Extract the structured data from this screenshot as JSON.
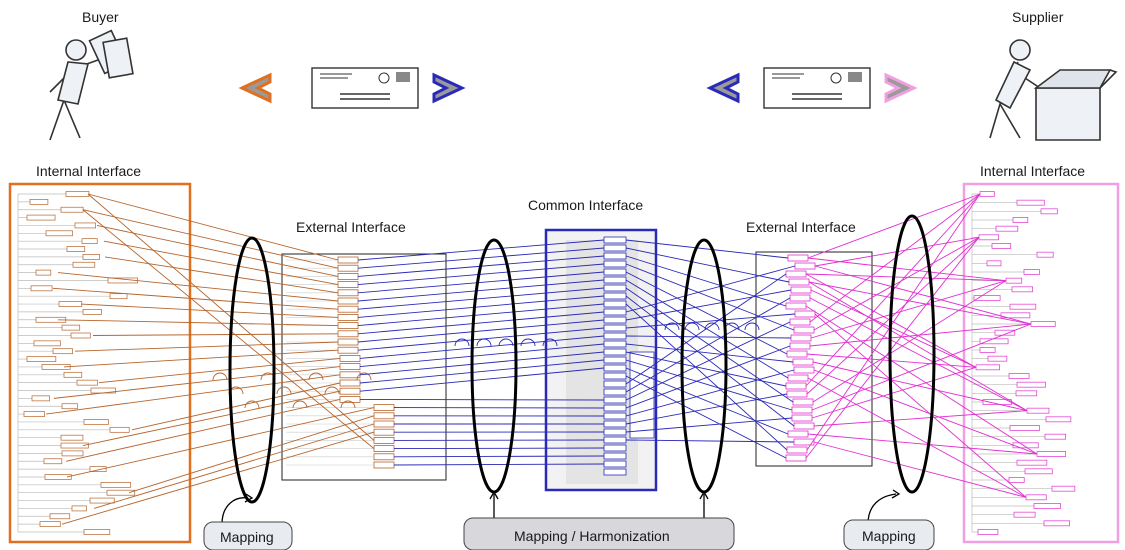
{
  "actors": {
    "buyer": "Buyer",
    "supplier": "Supplier"
  },
  "interfaces": {
    "internal_left": "Internal Interface",
    "external_left": "External Interface",
    "common": "Common Interface",
    "external_right": "External Interface",
    "internal_right": "Internal Interface"
  },
  "mappings": {
    "left": "Mapping",
    "center": "Mapping / Harmonization",
    "right": "Mapping"
  },
  "colors": {
    "buyer_internal": "#e07020",
    "buyer_lines": "#b5652d",
    "common_blue": "#2a2ab8",
    "supplier_pink": "#e030d0",
    "supplier_frame": "#f0a0e0",
    "ellipse": "#000000",
    "label_box_fill": "#e8ebf0"
  },
  "icons": {
    "buyer": "person-with-money-icon",
    "supplier": "person-packing-box-icon",
    "envelopes": "envelope-icon",
    "left_arrow_orange": "chevron-left-icon",
    "right_arrow_blue": "chevron-right-icon",
    "left_arrow_blue": "chevron-left-icon",
    "right_arrow_pink": "chevron-right-icon"
  }
}
